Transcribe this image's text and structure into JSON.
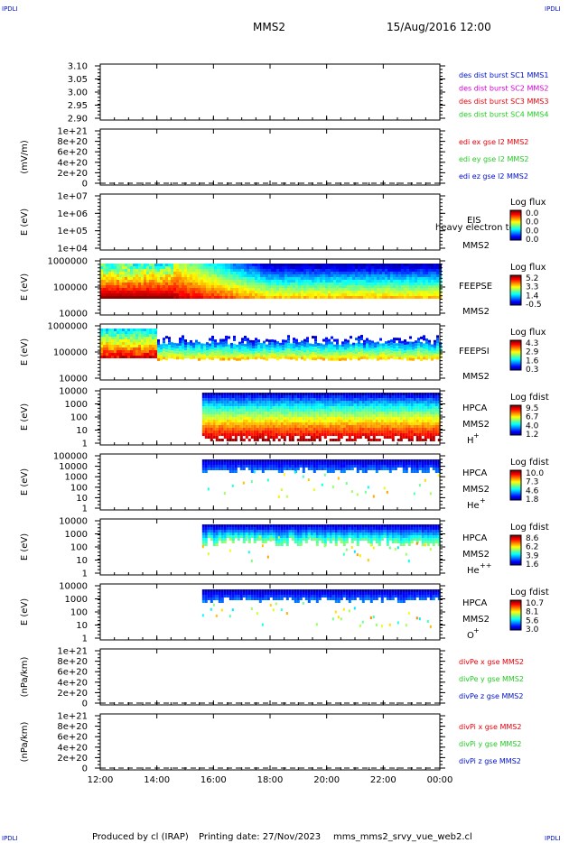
{
  "corner_label": "IPDLI",
  "header": {
    "spacecraft": "MMS2",
    "datetime": "15/Aug/2016 12:00"
  },
  "footer": {
    "produced_by": "Produced by cl (IRAP)",
    "printing_date": "Printing date: 27/Nov/2023",
    "script": "mms_mms2_srvy_vue_web2.cl"
  },
  "colors": {
    "red": "#e8000b",
    "magenta": "#d400d4",
    "green": "#22cc22",
    "blue": "#0010c8",
    "axis": "#000000"
  },
  "chart_data": {
    "type": "heatmap",
    "x_ticks": [
      "12:00",
      "14:00",
      "16:00",
      "18:00",
      "20:00",
      "22:00",
      "00:00"
    ],
    "x_range_hours": [
      12,
      24
    ],
    "panels": [
      {
        "name": "panel-des-dist",
        "ylabel": "",
        "yticks": [
          "3.10",
          "3.05",
          "3.00",
          "2.95",
          "2.90"
        ],
        "legend": [
          {
            "text": "des dist burst SC1 MMS1",
            "color": "#0010c8"
          },
          {
            "text": "des dist burst SC2 MMS2",
            "color": "#d400d4"
          },
          {
            "text": "des dist burst SC3 MMS3",
            "color": "#e8000b"
          },
          {
            "text": "des dist burst SC4 MMS4",
            "color": "#22cc22"
          }
        ]
      },
      {
        "name": "panel-edi",
        "ylabel": "(mV/m)",
        "yticks": [
          "1e+21",
          "8e+20",
          "6e+20",
          "4e+20",
          "2e+20",
          "0"
        ],
        "legend": [
          {
            "text": "edi ex gse l2 MMS2",
            "color": "#e8000b"
          },
          {
            "text": "edi ey gse l2 MMS2",
            "color": "#22cc22"
          },
          {
            "text": "edi ez gse l2 MMS2",
            "color": "#0010c8"
          }
        ]
      },
      {
        "name": "panel-eis",
        "ylabel": "E (eV)",
        "yticks": [
          "1e+07",
          "1e+06",
          "1e+05",
          "1e+04"
        ],
        "instrument": [
          "EIS",
          "heavy electron to",
          "MMS2"
        ],
        "colorbar": {
          "title": "Log flux",
          "ticks": [
            "0.0",
            "0.0",
            "0.0",
            "0.0"
          ]
        },
        "data": []
      },
      {
        "name": "panel-feepse",
        "ylabel": "E (eV)",
        "yticks": [
          "1000000",
          "100000",
          "10000"
        ],
        "instrument": [
          "FEEPSE",
          "MMS2"
        ],
        "colorbar": {
          "title": "Log flux",
          "ticks": [
            "5.2",
            "3.3",
            "1.4",
            "-0.5"
          ]
        },
        "data": {
          "start": 12.0,
          "end": 24.0,
          "description": "energetic electron flux, high early, decreasing after 14:30"
        }
      },
      {
        "name": "panel-feepsi",
        "ylabel": "E (eV)",
        "yticks": [
          "1000000",
          "100000",
          "10000"
        ],
        "instrument": [
          "FEEPSI",
          "MMS2"
        ],
        "colorbar": {
          "title": "Log flux",
          "ticks": [
            "4.3",
            "2.9",
            "1.6",
            "0.3"
          ]
        },
        "data": {
          "start": 12.0,
          "end": 24.0
        }
      },
      {
        "name": "panel-hpca-h",
        "ylabel": "E (eV)",
        "yticks": [
          "10000",
          "1000",
          "100",
          "10",
          "1"
        ],
        "instrument": [
          "HPCA",
          "MMS2",
          "H",
          "+"
        ],
        "colorbar": {
          "title": "Log fdist",
          "ticks": [
            "9.5",
            "6.7",
            "4.0",
            "1.2"
          ]
        },
        "data": {
          "start": 15.6,
          "end": 24.0
        }
      },
      {
        "name": "panel-hpca-he",
        "ylabel": "E (eV)",
        "yticks": [
          "100000",
          "10000",
          "1000",
          "100",
          "10",
          "1"
        ],
        "instrument": [
          "HPCA",
          "MMS2",
          "He",
          "+"
        ],
        "colorbar": {
          "title": "Log fdist",
          "ticks": [
            "10.0",
            "7.3",
            "4.6",
            "1.8"
          ]
        },
        "data": {
          "start": 15.6,
          "end": 24.0
        }
      },
      {
        "name": "panel-hpca-he2",
        "ylabel": "E (eV)",
        "yticks": [
          "10000",
          "1000",
          "100",
          "10",
          "1"
        ],
        "instrument": [
          "HPCA",
          "MMS2",
          "He",
          "++"
        ],
        "colorbar": {
          "title": "Log fdist",
          "ticks": [
            "8.6",
            "6.2",
            "3.9",
            "1.6"
          ]
        },
        "data": {
          "start": 15.6,
          "end": 24.0
        }
      },
      {
        "name": "panel-hpca-o",
        "ylabel": "E (eV)",
        "yticks": [
          "10000",
          "1000",
          "100",
          "10",
          "1"
        ],
        "instrument": [
          "HPCA",
          "MMS2",
          "O",
          "+"
        ],
        "colorbar": {
          "title": "Log fdist",
          "ticks": [
            "10.7",
            "8.1",
            "5.6",
            "3.0"
          ]
        },
        "data": {
          "start": 15.6,
          "end": 24.0
        }
      },
      {
        "name": "panel-divpe",
        "ylabel": "(nPa/km)",
        "yticks": [
          "1e+21",
          "8e+20",
          "6e+20",
          "4e+20",
          "2e+20",
          "0"
        ],
        "legend": [
          {
            "text": "divPe x gse MMS2",
            "color": "#e8000b"
          },
          {
            "text": "divPe y gse MMS2",
            "color": "#22cc22"
          },
          {
            "text": "divPe z gse MMS2",
            "color": "#0010c8"
          }
        ]
      },
      {
        "name": "panel-divpi",
        "ylabel": "(nPa/km)",
        "yticks": [
          "1e+21",
          "8e+20",
          "6e+20",
          "4e+20",
          "2e+20",
          "0"
        ],
        "legend": [
          {
            "text": "divPi x gse MMS2",
            "color": "#e8000b"
          },
          {
            "text": "divPi y gse MMS2",
            "color": "#22cc22"
          },
          {
            "text": "divPi z gse MMS2",
            "color": "#0010c8"
          }
        ]
      }
    ]
  }
}
